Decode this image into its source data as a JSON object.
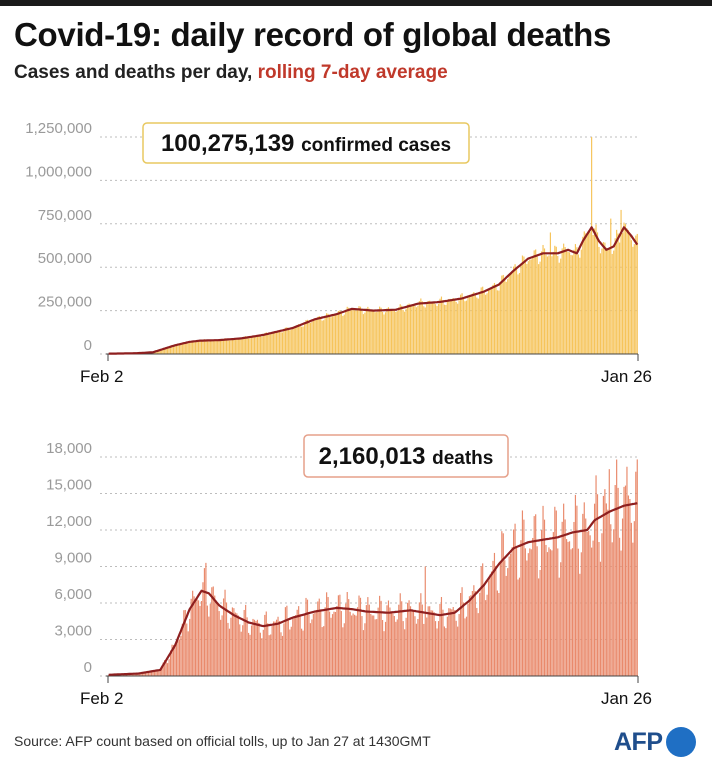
{
  "title": "Covid-19: daily record of global deaths",
  "subtitle_plain": "Cases and deaths per day,",
  "subtitle_accent": "rolling 7-day average",
  "colors": {
    "cases_bar": "#f6c45b",
    "deaths_bar": "#e98a6c",
    "rolling_line": "#8e1f1f",
    "accent_text": "#c0392b",
    "afp_blue": "#1f6fc4"
  },
  "source": "Source: AFP count based on official tolls, up to Jan 27 at 1430GMT",
  "logo_text": "AFP",
  "chart_data": [
    {
      "type": "bar",
      "metric": "confirmed cases per day",
      "callout_number": "100,275,139",
      "callout_label": "confirmed cases",
      "x_start": "Feb 2",
      "x_end": "Jan 26",
      "x_ticks": [
        "Feb 2",
        "Jan 26"
      ],
      "ylim": [
        0,
        1250000
      ],
      "y_ticks": [
        0,
        250000,
        500000,
        750000,
        1000000,
        1250000
      ],
      "y_tick_labels": [
        "0",
        "250,000",
        "500,000",
        "750,000",
        "1,000,000",
        "1,250,000"
      ],
      "grid": true,
      "n_days": 360,
      "rolling_avg_knots": [
        [
          0,
          2000
        ],
        [
          10,
          3000
        ],
        [
          20,
          5000
        ],
        [
          30,
          10000
        ],
        [
          45,
          50000
        ],
        [
          55,
          70000
        ],
        [
          62,
          77000
        ],
        [
          75,
          80000
        ],
        [
          90,
          90000
        ],
        [
          105,
          110000
        ],
        [
          125,
          150000
        ],
        [
          140,
          200000
        ],
        [
          155,
          230000
        ],
        [
          165,
          260000
        ],
        [
          180,
          250000
        ],
        [
          195,
          255000
        ],
        [
          210,
          290000
        ],
        [
          225,
          300000
        ],
        [
          240,
          320000
        ],
        [
          255,
          360000
        ],
        [
          265,
          400000
        ],
        [
          275,
          480000
        ],
        [
          285,
          550000
        ],
        [
          295,
          580000
        ],
        [
          305,
          580000
        ],
        [
          312,
          600000
        ],
        [
          318,
          580000
        ],
        [
          322,
          650000
        ],
        [
          328,
          730000
        ],
        [
          333,
          650000
        ],
        [
          338,
          600000
        ],
        [
          343,
          620000
        ],
        [
          350,
          730000
        ],
        [
          355,
          680000
        ],
        [
          359,
          630000
        ]
      ],
      "bar_variation_pct": 10,
      "bar_spikes": [
        [
          328,
          1250000
        ],
        [
          348,
          830000
        ],
        [
          341,
          780000
        ],
        [
          300,
          700000
        ]
      ]
    },
    {
      "type": "bar",
      "metric": "deaths per day",
      "callout_number": "2,160,013",
      "callout_label": "deaths",
      "x_start": "Feb 2",
      "x_end": "Jan 26",
      "x_ticks": [
        "Feb 2",
        "Jan 26"
      ],
      "ylim": [
        0,
        18000
      ],
      "y_ticks": [
        0,
        3000,
        6000,
        9000,
        12000,
        15000,
        18000
      ],
      "y_tick_labels": [
        "0",
        "3,000",
        "6,000",
        "9,000",
        "12,000",
        "15,000",
        "18,000"
      ],
      "grid": true,
      "n_days": 360,
      "rolling_avg_knots": [
        [
          0,
          100
        ],
        [
          20,
          200
        ],
        [
          35,
          500
        ],
        [
          45,
          2500
        ],
        [
          55,
          5500
        ],
        [
          63,
          7000
        ],
        [
          68,
          6800
        ],
        [
          75,
          5800
        ],
        [
          85,
          5000
        ],
        [
          95,
          4400
        ],
        [
          105,
          4100
        ],
        [
          115,
          4300
        ],
        [
          125,
          4800
        ],
        [
          140,
          5300
        ],
        [
          155,
          5600
        ],
        [
          165,
          5500
        ],
        [
          175,
          5300
        ],
        [
          190,
          5200
        ],
        [
          205,
          5400
        ],
        [
          215,
          5200
        ],
        [
          225,
          5000
        ],
        [
          235,
          5200
        ],
        [
          245,
          6200
        ],
        [
          255,
          7500
        ],
        [
          265,
          9200
        ],
        [
          275,
          10500
        ],
        [
          285,
          11000
        ],
        [
          295,
          11200
        ],
        [
          305,
          11400
        ],
        [
          315,
          11800
        ],
        [
          325,
          12000
        ],
        [
          330,
          12800
        ],
        [
          340,
          13500
        ],
        [
          350,
          14000
        ],
        [
          359,
          14200
        ]
      ],
      "bar_variation_pct": 30,
      "bar_spikes": [
        [
          66,
          9300
        ],
        [
          215,
          9000
        ],
        [
          340,
          17000
        ],
        [
          352,
          17200
        ],
        [
          359,
          17800
        ]
      ]
    }
  ]
}
